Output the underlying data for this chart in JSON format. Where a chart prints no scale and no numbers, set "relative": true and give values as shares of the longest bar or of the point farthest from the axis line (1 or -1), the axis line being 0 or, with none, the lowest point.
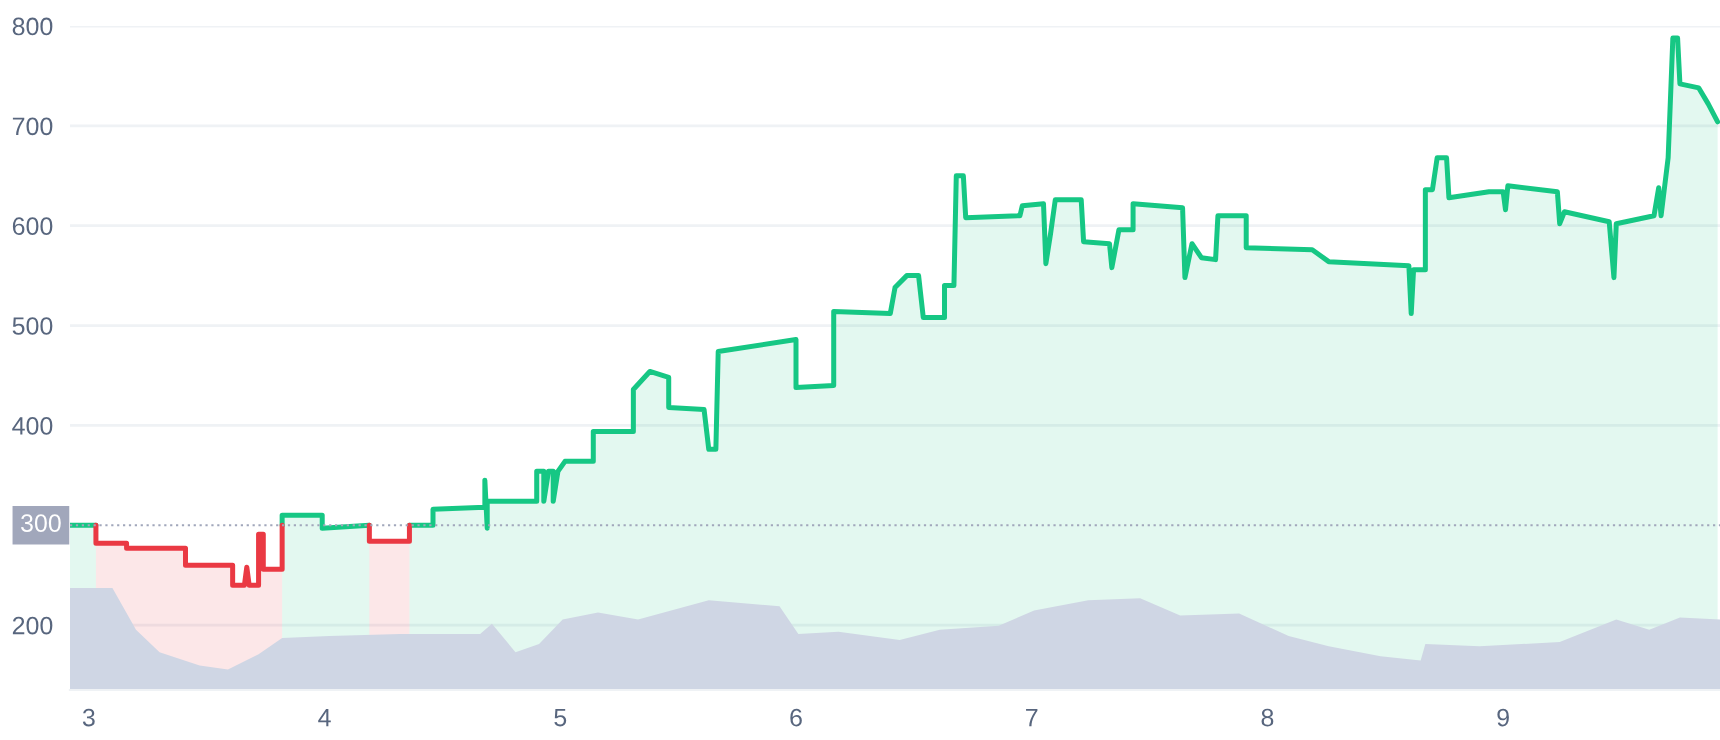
{
  "chart_data": [
    {
      "type": "area",
      "xlim": [
        2.92,
        9.92
      ],
      "ylim": [
        135,
        800
      ],
      "xticks": [
        3,
        4,
        5,
        6,
        7,
        8,
        9
      ],
      "yticks": [
        200,
        400,
        500,
        600,
        700,
        800
      ],
      "grid": "y",
      "legend": false,
      "ref_lines": [
        {
          "axis": "y",
          "value": 300,
          "label": "300",
          "color": "#a1a7bb",
          "line_style": "dotted"
        }
      ],
      "series": [
        {
          "color": "#16c784",
          "x": [
            2.92,
            3.03,
            null,
            3.82,
            3.82,
            3.99,
            3.99,
            4.19,
            null,
            4.36,
            4.46,
            4.46,
            4.68,
            4.68,
            4.69,
            4.69,
            4.9,
            4.9,
            4.93,
            4.93,
            4.95,
            4.97,
            4.97,
            4.99,
            5.02,
            5.14,
            5.14,
            5.31,
            5.31,
            5.38,
            5.46,
            5.46,
            5.61,
            5.63,
            5.66,
            5.67,
            6.0,
            6.0,
            6.16,
            6.16,
            6.4,
            6.42,
            6.47,
            6.52,
            6.54,
            6.63,
            6.63,
            6.67,
            6.68,
            6.71,
            6.72,
            6.95,
            6.96,
            7.05,
            7.06,
            7.08,
            7.1,
            7.21,
            7.22,
            7.33,
            7.34,
            7.37,
            7.43,
            7.43,
            7.64,
            7.65,
            7.68,
            7.72,
            7.78,
            7.79,
            7.91,
            7.91,
            8.19,
            8.26,
            8.6,
            8.61,
            8.62,
            8.67,
            8.67,
            8.7,
            8.72,
            8.76,
            8.77,
            8.94,
            9.0,
            9.01,
            9.02,
            9.23,
            9.24,
            9.26,
            9.45,
            9.47,
            9.48,
            9.64,
            9.66,
            9.67,
            9.7,
            9.72,
            9.74,
            9.75,
            9.83,
            9.87,
            9.91
          ],
          "values": [
            300,
            300,
            null,
            300,
            310,
            310,
            297,
            300,
            null,
            300,
            300,
            316,
            318,
            345,
            297,
            324,
            324,
            354,
            354,
            324,
            354,
            354,
            324,
            354,
            364,
            364,
            394,
            394,
            436,
            454,
            448,
            418,
            416,
            376,
            376,
            474,
            486,
            438,
            440,
            514,
            512,
            538,
            550,
            550,
            508,
            508,
            540,
            540,
            650,
            650,
            608,
            610,
            620,
            622,
            562,
            592,
            626,
            626,
            584,
            582,
            558,
            596,
            596,
            622,
            618,
            548,
            582,
            568,
            566,
            610,
            610,
            578,
            576,
            564,
            560,
            512,
            556,
            556,
            636,
            636,
            668,
            668,
            628,
            634,
            634,
            616,
            640,
            634,
            602,
            614,
            604,
            548,
            602,
            610,
            638,
            610,
            668,
            788,
            788,
            742,
            738,
            722,
            704
          ]
        },
        {
          "color": "#ea3943",
          "x": [
            3.03,
            3.03,
            3.16,
            3.16,
            3.41,
            3.41,
            3.61,
            3.61,
            3.66,
            3.67,
            3.68,
            3.72,
            3.72,
            3.74,
            3.74,
            3.82,
            3.82,
            4.0,
            4.19,
            4.19,
            4.36,
            4.36
          ],
          "values": [
            300,
            282,
            282,
            277,
            277,
            260,
            260,
            240,
            240,
            258,
            240,
            240,
            291,
            291,
            256,
            256,
            300,
            null,
            300,
            284,
            284,
            300
          ]
        }
      ]
    },
    {
      "type": "area",
      "relative": true,
      "xlim": [
        2.92,
        9.92
      ],
      "series": [
        {
          "color": "#cfd6e4",
          "x": [
            2.92,
            3.1,
            3.2,
            3.3,
            3.47,
            3.59,
            3.72,
            3.82,
            4.02,
            4.32,
            4.66,
            4.71,
            4.81,
            4.91,
            5.01,
            5.16,
            5.33,
            5.63,
            5.93,
            6.01,
            6.18,
            6.44,
            6.61,
            6.86,
            7.01,
            7.24,
            7.46,
            7.63,
            7.88,
            8.09,
            8.26,
            8.48,
            8.65,
            8.67,
            8.9,
            9.24,
            9.48,
            9.62,
            9.75,
            9.92
          ],
          "values": [
            1.0,
            1.0,
            0.59,
            0.37,
            0.24,
            0.2,
            0.35,
            0.51,
            0.53,
            0.55,
            0.55,
            0.65,
            0.37,
            0.45,
            0.69,
            0.76,
            0.69,
            0.88,
            0.82,
            0.55,
            0.57,
            0.49,
            0.59,
            0.63,
            0.78,
            0.88,
            0.9,
            0.73,
            0.75,
            0.53,
            0.43,
            0.33,
            0.29,
            0.45,
            0.43,
            0.47,
            0.69,
            0.59,
            0.71,
            0.69
          ]
        }
      ]
    }
  ]
}
